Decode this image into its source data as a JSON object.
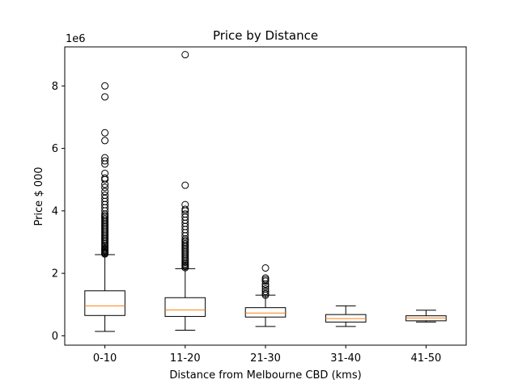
{
  "chart_data": {
    "type": "box",
    "title": "Price by Distance",
    "xlabel": "Distance from Melbourne CBD (kms)",
    "ylabel": "Price $ 000",
    "y_offset_label": "1e6",
    "y_scale": 1000000,
    "ylim": [
      -0.3,
      9.25
    ],
    "yticks": [
      0,
      2,
      4,
      6,
      8
    ],
    "yticks_text": [
      "0",
      "2",
      "4",
      "6",
      "8"
    ],
    "categories": [
      "0-10",
      "11-20",
      "21-30",
      "31-40",
      "41-50"
    ],
    "grid": false,
    "colors": {
      "box": "#000000",
      "median": "#ff7f0e",
      "flier": "#000000"
    },
    "boxes": [
      {
        "category": "0-10",
        "whisker_low": 0.14,
        "q1": 0.65,
        "median": 0.96,
        "q3": 1.44,
        "whisker_high": 2.6,
        "outliers": [
          2.62,
          2.65,
          2.68,
          2.72,
          2.75,
          2.78,
          2.82,
          2.86,
          2.9,
          2.95,
          3.0,
          3.05,
          3.1,
          3.15,
          3.2,
          3.25,
          3.3,
          3.35,
          3.4,
          3.45,
          3.5,
          3.55,
          3.6,
          3.65,
          3.7,
          3.75,
          3.8,
          3.85,
          3.9,
          4.0,
          4.1,
          4.2,
          4.3,
          4.4,
          4.5,
          4.62,
          4.75,
          4.85,
          5.0,
          5.05,
          5.2,
          5.5,
          5.6,
          5.7,
          6.25,
          6.5,
          7.65,
          8.0
        ]
      },
      {
        "category": "11-20",
        "whisker_low": 0.18,
        "q1": 0.62,
        "median": 0.83,
        "q3": 1.22,
        "whisker_high": 2.15,
        "outliers": [
          2.18,
          2.22,
          2.26,
          2.3,
          2.35,
          2.4,
          2.45,
          2.5,
          2.55,
          2.6,
          2.65,
          2.7,
          2.75,
          2.8,
          2.85,
          2.9,
          2.95,
          3.0,
          3.05,
          3.1,
          3.2,
          3.3,
          3.4,
          3.5,
          3.6,
          3.7,
          3.8,
          3.9,
          4.0,
          4.05,
          4.2,
          4.82,
          9.0
        ]
      },
      {
        "category": "21-30",
        "whisker_low": 0.3,
        "q1": 0.6,
        "median": 0.73,
        "q3": 0.9,
        "whisker_high": 1.3,
        "outliers": [
          1.3,
          1.35,
          1.42,
          1.5,
          1.58,
          1.65,
          1.75,
          1.8,
          1.85,
          2.17
        ]
      },
      {
        "category": "31-40",
        "whisker_low": 0.3,
        "q1": 0.44,
        "median": 0.55,
        "q3": 0.68,
        "whisker_high": 0.96,
        "outliers": []
      },
      {
        "category": "41-50",
        "whisker_low": 0.44,
        "q1": 0.48,
        "median": 0.57,
        "q3": 0.64,
        "whisker_high": 0.82,
        "outliers": []
      }
    ]
  }
}
